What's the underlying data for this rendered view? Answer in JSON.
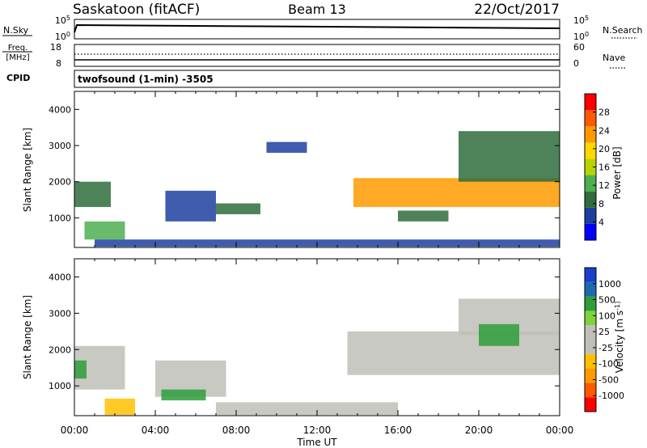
{
  "header": {
    "title": "Saskatoon (fitACF)",
    "beam": "Beam 13",
    "date": "22/Oct/2017"
  },
  "noise_panel": {
    "left_label": "N.Sky",
    "right_label": "N.Search",
    "left_ticks": [
      {
        "v": 5,
        "label": "10^5"
      },
      {
        "v": 0,
        "label": "10^0"
      }
    ],
    "right_ticks": [
      {
        "v": 5,
        "label": "10^5"
      },
      {
        "v": 0,
        "label": "10^0"
      }
    ]
  },
  "freq_panel": {
    "label_line1": "Freq.",
    "label_line2": "[MHz]",
    "right_label": "Nave",
    "left_ticks": [
      {
        "v": 18,
        "label": "18"
      },
      {
        "v": 8,
        "label": "8"
      }
    ],
    "right_ticks": [
      {
        "v": 60,
        "label": "60"
      },
      {
        "v": 0,
        "label": "0"
      }
    ]
  },
  "cpid_panel": {
    "label": "CPID",
    "text": "twofsound (1-min) -3505"
  },
  "power_panel": {
    "ylabel": "Slant Range [km]",
    "cbar_label": "Power [dB]",
    "cbar_colors": [
      "#0000ff",
      "#1d3fa0",
      "#2f6d3c",
      "#4caf50",
      "#b8d400",
      "#ffd800",
      "#ff9a00",
      "#ff5a00",
      "#ff0000"
    ],
    "cbar_ticks": [
      "4",
      "8",
      "12",
      "16",
      "20",
      "24",
      "28"
    ]
  },
  "velocity_panel": {
    "ylabel": "Slant Range [km]",
    "cbar_label": "Velocity [m s^-1]",
    "cbar_colors": [
      "#ff0000",
      "#ff5a00",
      "#ff9a00",
      "#ffc000",
      "#c0c0b8",
      "#c0c0b8",
      "#7fd23a",
      "#2e9e3a",
      "#1e6ab0",
      "#1a3fcc"
    ],
    "cbar_ticks": [
      "-1000",
      "-500",
      "-100",
      "-25",
      "25",
      "100",
      "500",
      "1000"
    ]
  },
  "x_axis": {
    "label": "Time UT",
    "ticks": [
      "00:00",
      "04:00",
      "08:00",
      "12:00",
      "16:00",
      "20:00",
      "00:00"
    ]
  },
  "chart_data": [
    {
      "type": "heatmap",
      "name": "power",
      "xlabel": "Time UT",
      "ylabel": "Slant Range [km]",
      "xlim": [
        0,
        24
      ],
      "ylim": [
        180,
        4500
      ],
      "yticks": [
        1000,
        2000,
        3000,
        4000
      ],
      "colorbar": {
        "label": "Power [dB]",
        "range": [
          0,
          32
        ],
        "ticks": [
          4,
          8,
          12,
          16,
          20,
          24,
          28
        ]
      },
      "regions": [
        {
          "t0": 0.0,
          "t1": 1.8,
          "r0": 1300,
          "r1": 2000,
          "value": 10
        },
        {
          "t0": 0.5,
          "t1": 2.5,
          "r0": 400,
          "r1": 900,
          "value": 14
        },
        {
          "t0": 4.5,
          "t1": 7.0,
          "r0": 900,
          "r1": 1750,
          "value": 4
        },
        {
          "t0": 7.0,
          "t1": 9.2,
          "r0": 1100,
          "r1": 1400,
          "value": 8
        },
        {
          "t0": 9.5,
          "t1": 11.5,
          "r0": 2800,
          "r1": 3100,
          "value": 6
        },
        {
          "t0": 13.8,
          "t1": 24.0,
          "r0": 1300,
          "r1": 2100,
          "value": 24
        },
        {
          "t0": 19.0,
          "t1": 24.0,
          "r0": 2000,
          "r1": 3400,
          "value": 10
        },
        {
          "t0": 16.0,
          "t1": 18.5,
          "r0": 900,
          "r1": 1200,
          "value": 10
        },
        {
          "t0": 1.0,
          "t1": 24.0,
          "r0": 200,
          "r1": 400,
          "value": 6
        }
      ]
    },
    {
      "type": "heatmap",
      "name": "velocity",
      "xlabel": "Time UT",
      "ylabel": "Slant Range [km]",
      "xlim": [
        0,
        24
      ],
      "ylim": [
        180,
        4500
      ],
      "yticks": [
        1000,
        2000,
        3000,
        4000
      ],
      "colorbar": {
        "label": "Velocity [m s^-1]",
        "ticks": [
          -1000,
          -500,
          -100,
          -25,
          25,
          100,
          500,
          1000
        ]
      },
      "regions": [
        {
          "t0": 0.0,
          "t1": 2.5,
          "r0": 900,
          "r1": 2100,
          "value": 0
        },
        {
          "t0": 0.0,
          "t1": 0.6,
          "r0": 1200,
          "r1": 1700,
          "value": 500
        },
        {
          "t0": 1.5,
          "t1": 3.0,
          "r0": 200,
          "r1": 650,
          "value": -150
        },
        {
          "t0": 4.0,
          "t1": 7.5,
          "r0": 700,
          "r1": 1700,
          "value": 0
        },
        {
          "t0": 4.3,
          "t1": 6.5,
          "r0": 600,
          "r1": 900,
          "value": 150
        },
        {
          "t0": 7.0,
          "t1": 16.0,
          "r0": 200,
          "r1": 550,
          "value": -80
        },
        {
          "t0": 13.5,
          "t1": 24.0,
          "r0": 1300,
          "r1": 2500,
          "value": 0
        },
        {
          "t0": 19.0,
          "t1": 24.0,
          "r0": 2400,
          "r1": 3400,
          "value": 0
        },
        {
          "t0": 20.0,
          "t1": 22.0,
          "r0": 2100,
          "r1": 2700,
          "value": 200
        }
      ]
    }
  ]
}
